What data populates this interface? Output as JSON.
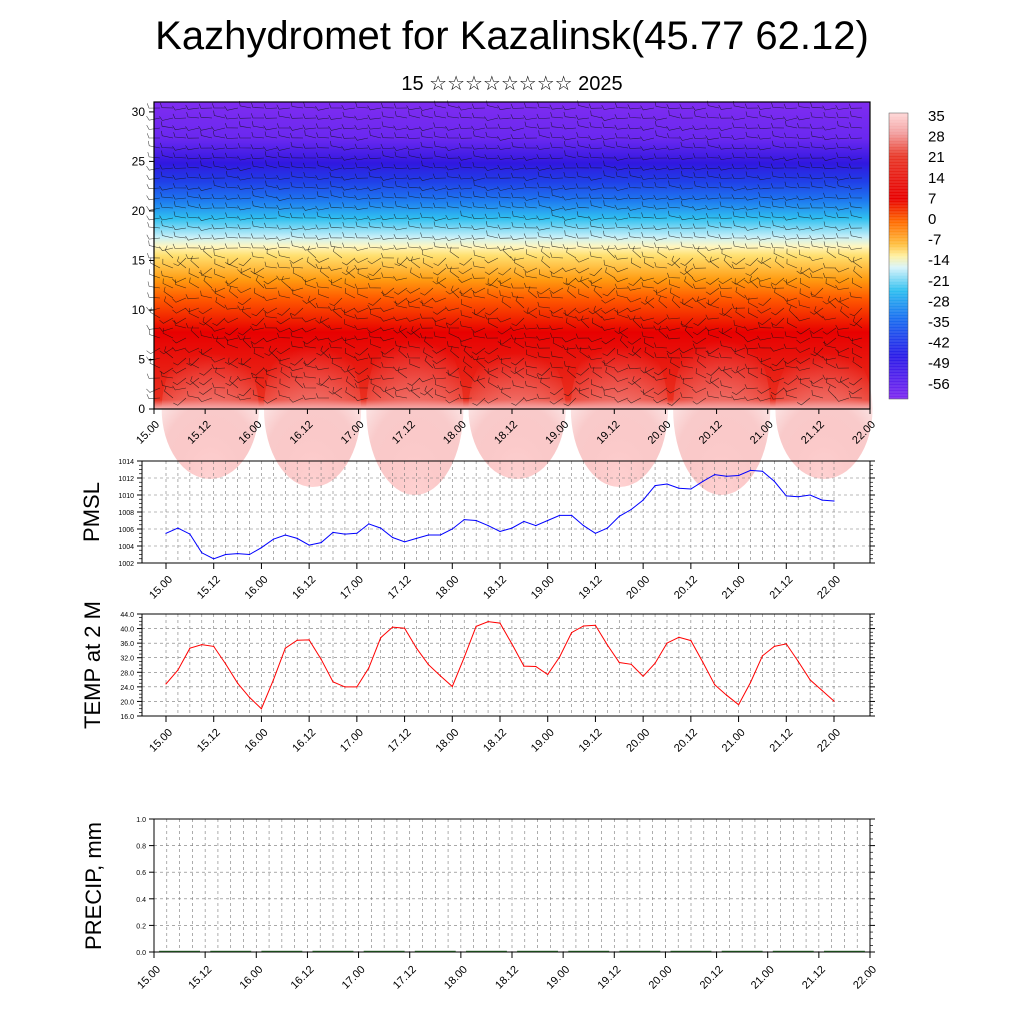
{
  "header": {
    "title": "Kazhydromet for Kazalinsk(45.77 62.12)",
    "subtitle": "15 ☆☆☆☆☆☆☆☆ 2025"
  },
  "colors": {
    "pmsl_line": "#0000ff",
    "temp_line": "#ff0000",
    "frame": "#000000",
    "grid": "#808080",
    "colorbar_stops": [
      "#ffd0d0",
      "#f4a6a6",
      "#e83a2a",
      "#e80000",
      "#ff7a00",
      "#ffe07a",
      "#fff6c0",
      "#b8e8f8",
      "#22b8f0",
      "#1a6ef0",
      "#2a1ce8",
      "#7f2af0"
    ]
  },
  "chart_data": [
    {
      "type": "heatmap",
      "name": "cross-section",
      "x_ticks": [
        "15.00",
        "15.12",
        "16.00",
        "16.12",
        "17.00",
        "17.12",
        "18.00",
        "18.12",
        "19.00",
        "19.12",
        "20.00",
        "20.12",
        "21.00",
        "21.12",
        "22.00"
      ],
      "y_ticks": [
        "0",
        "5",
        "10",
        "15",
        "20",
        "25",
        "30"
      ],
      "ylim": [
        0,
        31
      ],
      "colorbar_labels": [
        "35",
        "28",
        "21",
        "14",
        "7",
        "0",
        "-7",
        "-14",
        "-21",
        "-28",
        "-35",
        "-42",
        "-49",
        "-56"
      ],
      "wind_barbs": true
    },
    {
      "type": "line",
      "ylabel": "PMSL",
      "ylim": [
        1002,
        1014
      ],
      "y_ticks": [
        "1002",
        "1004",
        "1006",
        "1008",
        "1010",
        "1012",
        "1014"
      ],
      "x_ticks": [
        "15.00",
        "15.12",
        "16.00",
        "16.12",
        "17.00",
        "17.12",
        "18.00",
        "18.12",
        "19.00",
        "19.12",
        "20.00",
        "20.12",
        "21.00",
        "21.12",
        "22.00"
      ],
      "grid": true,
      "series": [
        {
          "values": [
            1005.5,
            1006.1,
            1005.4,
            1003.2,
            1002.5,
            1003.0,
            1003.1,
            1003.0,
            1003.8,
            1004.8,
            1005.3,
            1004.9,
            1004.1,
            1004.4,
            1005.6,
            1005.4,
            1005.5,
            1006.6,
            1006.1,
            1005.0,
            1004.5,
            1004.9,
            1005.3,
            1005.3,
            1006.0,
            1007.1,
            1007.0,
            1006.4,
            1005.7,
            1006.1,
            1006.9,
            1006.4,
            1007.0,
            1007.6,
            1007.6,
            1006.4,
            1005.5,
            1006.1,
            1007.5,
            1008.3,
            1009.4,
            1011.1,
            1011.3,
            1010.8,
            1010.7,
            1011.6,
            1012.4,
            1012.2,
            1012.3,
            1012.9,
            1012.8,
            1011.6,
            1009.9,
            1009.8,
            1010.0,
            1009.4,
            1009.3
          ]
        }
      ]
    },
    {
      "type": "line",
      "ylabel": "TEMP at 2 M",
      "ylim": [
        16,
        44
      ],
      "y_ticks": [
        "16.0",
        "20.0",
        "24.0",
        "28.0",
        "32.0",
        "36.0",
        "40.0",
        "44.0"
      ],
      "x_ticks": [
        "15.00",
        "15.12",
        "16.00",
        "16.12",
        "17.00",
        "17.12",
        "18.00",
        "18.12",
        "19.00",
        "19.12",
        "20.00",
        "20.12",
        "21.00",
        "21.12",
        "22.00"
      ],
      "grid": true,
      "series": [
        {
          "values": [
            24.8,
            28.6,
            34.6,
            35.6,
            35.1,
            30.3,
            25.0,
            21.1,
            18.0,
            25.9,
            34.6,
            36.8,
            36.9,
            31.6,
            25.4,
            24.0,
            24.0,
            29.2,
            37.5,
            40.4,
            40.1,
            34.6,
            30.1,
            27.0,
            24.1,
            32.1,
            40.6,
            41.9,
            41.5,
            35.8,
            29.7,
            29.6,
            27.4,
            32.2,
            38.9,
            40.7,
            40.9,
            35.5,
            30.7,
            30.2,
            26.9,
            30.5,
            36.0,
            37.6,
            36.7,
            30.8,
            24.6,
            21.7,
            19.1,
            25.2,
            32.5,
            35.1,
            35.8,
            31.0,
            25.9,
            23.0,
            20.1
          ]
        }
      ]
    },
    {
      "type": "bar",
      "ylabel": "PRECIP, mm",
      "ylim": [
        0,
        1.0
      ],
      "y_ticks": [
        "0.0",
        "0.2",
        "0.4",
        "0.6",
        "0.8",
        "1.0"
      ],
      "x_ticks": [
        "15.00",
        "15.12",
        "16.00",
        "16.12",
        "17.00",
        "17.12",
        "18.00",
        "18.12",
        "19.00",
        "19.12",
        "20.00",
        "20.12",
        "21.00",
        "21.12",
        "22.00"
      ],
      "grid": true,
      "values": [
        0,
        0,
        0,
        0,
        0,
        0,
        0,
        0,
        0,
        0,
        0,
        0,
        0,
        0
      ]
    }
  ]
}
